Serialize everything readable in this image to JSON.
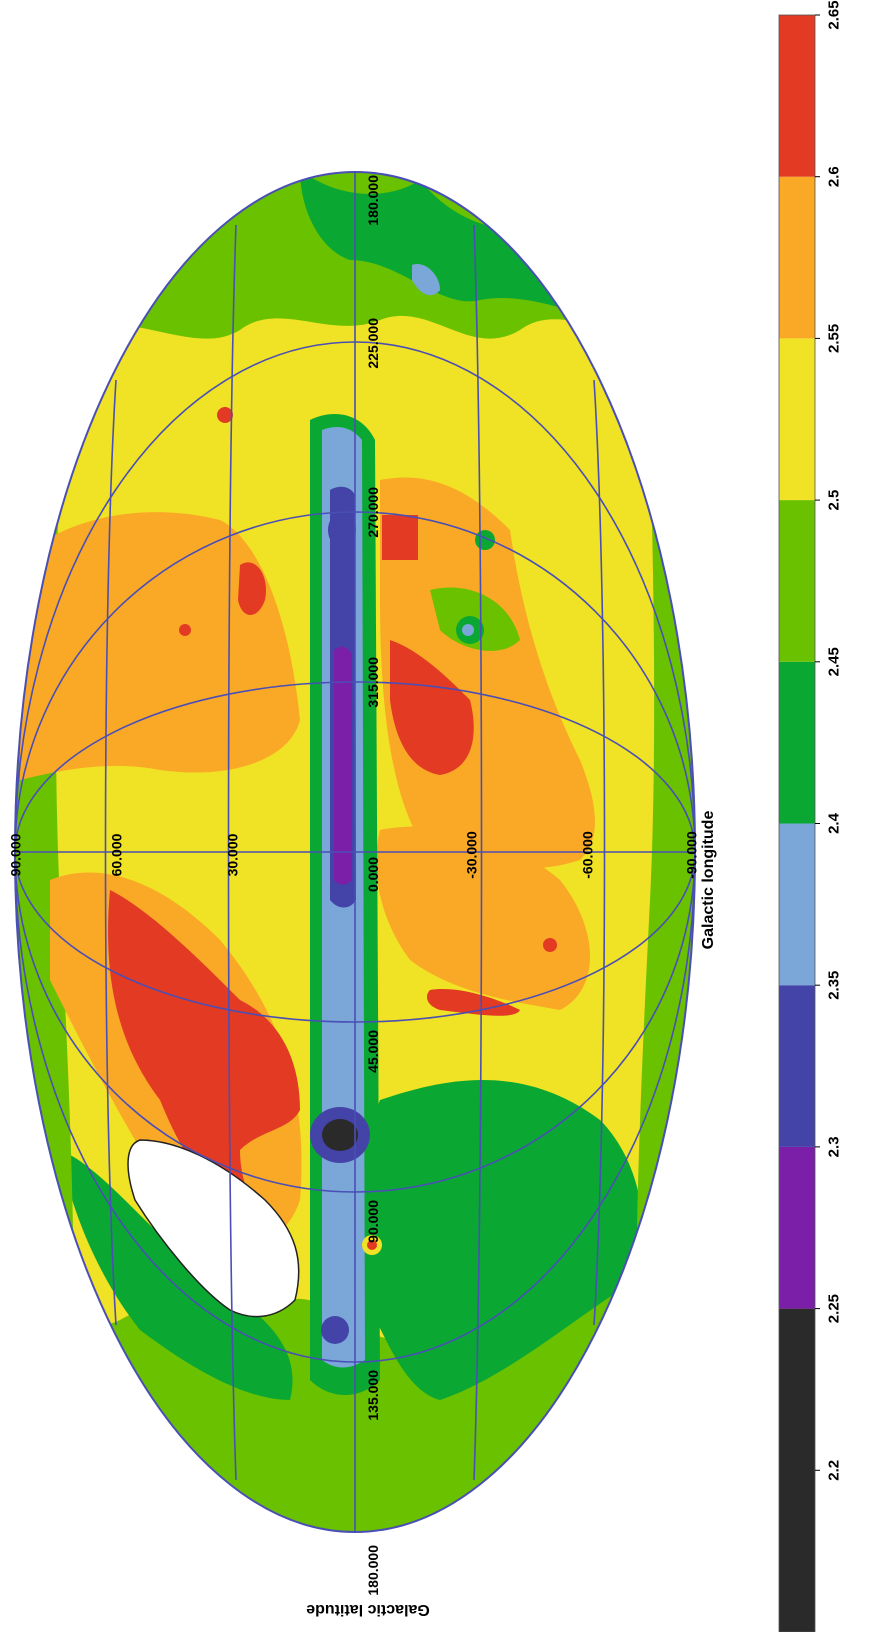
{
  "map": {
    "projection": "mollweide",
    "orientation": "rotated-90-clockwise",
    "x_axis_title": "Galactic longitude",
    "y_axis_title": "Galactic latitude",
    "longitude_labels": [
      "180.000",
      "225.000",
      "270.000",
      "315.000",
      "0.000",
      "45.000",
      "90.000",
      "135.000",
      "180.000"
    ],
    "latitude_labels": [
      "90.000",
      "60.000",
      "30.000",
      "0.000",
      "-30.000",
      "-60.000",
      "-90.000"
    ],
    "masked_region": "white ellipse near longitude 110, latitude 45",
    "grid": true
  },
  "colorbar": {
    "ticks": [
      "2.2",
      "2.25",
      "2.3",
      "2.35",
      "2.4",
      "2.45",
      "2.5",
      "2.55",
      "2.6",
      "2.65"
    ],
    "bins": [
      {
        "min": 2.15,
        "max": 2.25,
        "color": "#2b2a2a"
      },
      {
        "min": 2.25,
        "max": 2.3,
        "color": "#7b1fa9"
      },
      {
        "min": 2.3,
        "max": 2.35,
        "color": "#4343a8"
      },
      {
        "min": 2.35,
        "max": 2.4,
        "color": "#7aa7d8"
      },
      {
        "min": 2.4,
        "max": 2.45,
        "color": "#0aa832"
      },
      {
        "min": 2.45,
        "max": 2.5,
        "color": "#6ac100"
      },
      {
        "min": 2.5,
        "max": 2.55,
        "color": "#f0e224"
      },
      {
        "min": 2.55,
        "max": 2.6,
        "color": "#faa927"
      },
      {
        "min": 2.6,
        "max": 2.65,
        "color": "#e23a23"
      }
    ]
  },
  "colors": {
    "grid": "#4a4fb5",
    "background_level": "#f0e224"
  }
}
